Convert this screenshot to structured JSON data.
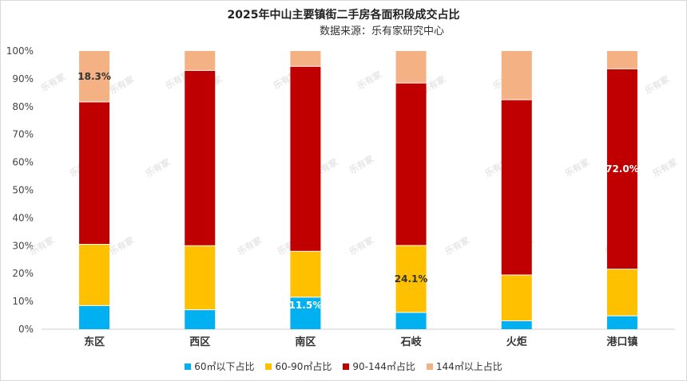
{
  "chart_data": {
    "type": "bar",
    "stacked": true,
    "title": "2025年中山主要镇街二手房各面积段成交占比",
    "subtitle": "数据来源：乐有家研究中心",
    "categories": [
      "东区",
      "西区",
      "南区",
      "石岐",
      "火炬",
      "港口镇"
    ],
    "series": [
      {
        "name": "60㎡以下占比",
        "color": "#00b0f0",
        "values": [
          8.5,
          7.0,
          11.5,
          6.0,
          3.0,
          4.8
        ]
      },
      {
        "name": "60-90㎡占比",
        "color": "#ffc000",
        "values": [
          22.0,
          23.0,
          16.5,
          24.1,
          16.5,
          16.8
        ]
      },
      {
        "name": "90-144㎡占比",
        "color": "#c00000",
        "values": [
          51.2,
          63.0,
          66.5,
          58.4,
          63.0,
          72.0
        ]
      },
      {
        "name": "144㎡以上占比",
        "color": "#f4b183",
        "values": [
          18.3,
          7.0,
          5.5,
          11.5,
          17.5,
          6.4
        ]
      }
    ],
    "data_labels": [
      {
        "category": "东区",
        "series": "144㎡以上占比",
        "text": "18.3%"
      },
      {
        "category": "南区",
        "series": "60㎡以下占比",
        "text": "11.5%"
      },
      {
        "category": "石岐",
        "series": "60-90㎡占比",
        "text": "24.1%"
      },
      {
        "category": "港口镇",
        "series": "90-144㎡占比",
        "text": "72.0%"
      }
    ],
    "y_ticks": [
      "0%",
      "10%",
      "20%",
      "30%",
      "40%",
      "50%",
      "60%",
      "70%",
      "80%",
      "90%",
      "100%"
    ],
    "ylim": [
      0,
      100
    ],
    "legend_position": "bottom",
    "watermark": "乐有家"
  }
}
